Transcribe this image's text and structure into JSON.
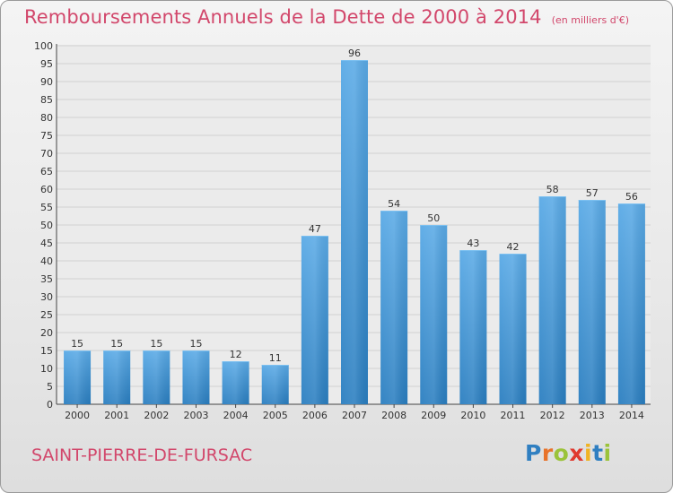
{
  "header": {
    "title": "Remboursements Annuels de la Dette de 2000 à 2014",
    "subtitle": "(en milliers d'€)"
  },
  "footer": {
    "commune": "SAINT-PIERRE-DE-FURSAC",
    "logo_letters": [
      "P",
      "r",
      "o",
      "x",
      "i",
      "t",
      "i"
    ],
    "logo_colors": [
      "#2f7fc1",
      "#e8732a",
      "#9bc33a",
      "#e03a2f",
      "#f0b323",
      "#2f7fc1",
      "#9bc33a"
    ]
  },
  "colors": {
    "accent": "#d2476b",
    "bar_light": "#5aaae6",
    "bar_dark": "#2a7ec0"
  },
  "chart_data": {
    "type": "bar",
    "categories": [
      "2000",
      "2001",
      "2002",
      "2003",
      "2004",
      "2005",
      "2006",
      "2007",
      "2008",
      "2009",
      "2010",
      "2011",
      "2012",
      "2013",
      "2014"
    ],
    "values": [
      15,
      15,
      15,
      15,
      12,
      11,
      47,
      96,
      54,
      50,
      43,
      42,
      58,
      57,
      56
    ],
    "ylim": [
      0,
      100
    ],
    "ytick_step": 5,
    "grid": true,
    "data_labels": true
  }
}
